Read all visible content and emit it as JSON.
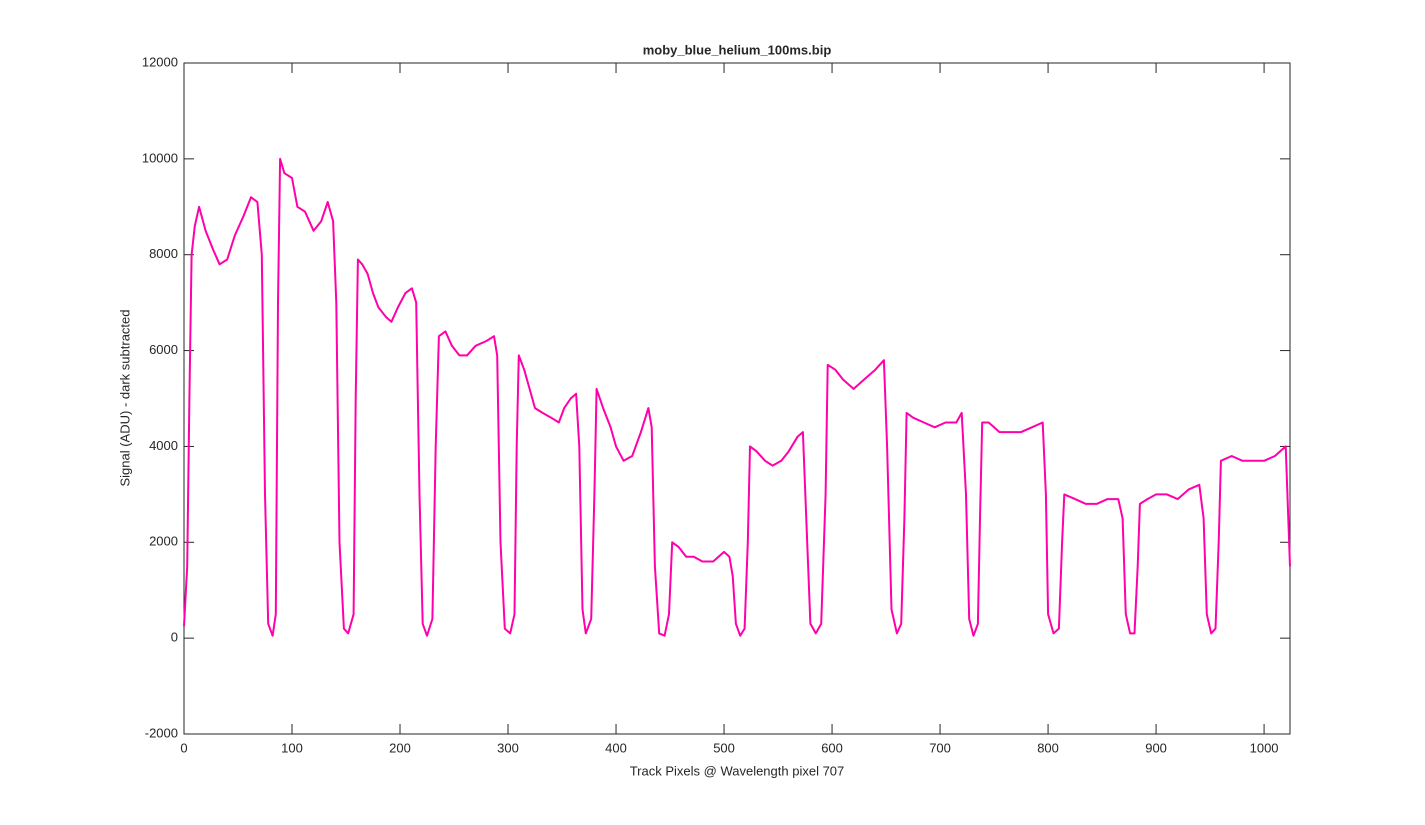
{
  "chart_data": {
    "type": "line",
    "title": "moby_blue_helium_100ms.bip",
    "x_label": "Track Pixels @ Wavelength pixel 707",
    "y_label": "Signal (ADU) - dark subtracted",
    "xlim": [
      0,
      1024
    ],
    "ylim": [
      -2000,
      12000
    ],
    "xticks": [
      0,
      100,
      200,
      300,
      400,
      500,
      600,
      700,
      800,
      900,
      1000
    ],
    "yticks": [
      -2000,
      0,
      2000,
      4000,
      6000,
      8000,
      10000,
      12000
    ],
    "grid": false,
    "x": [
      0,
      3,
      5,
      7,
      10,
      14,
      20,
      27,
      33,
      40,
      47,
      55,
      62,
      68,
      72,
      75,
      78,
      82,
      85,
      87,
      89,
      93,
      100,
      105,
      112,
      120,
      127,
      133,
      138,
      141,
      144,
      148,
      152,
      157,
      159,
      161,
      165,
      170,
      175,
      180,
      187,
      192,
      198,
      205,
      211,
      215,
      218,
      221,
      225,
      230,
      233,
      236,
      242,
      248,
      255,
      262,
      270,
      280,
      287,
      290,
      293,
      297,
      302,
      306,
      308,
      310,
      315,
      320,
      325,
      332,
      340,
      347,
      352,
      358,
      363,
      366,
      369,
      372,
      377,
      380,
      382,
      388,
      395,
      400,
      407,
      415,
      423,
      430,
      433,
      436,
      440,
      445,
      449,
      452,
      458,
      465,
      472,
      480,
      490,
      500,
      505,
      508,
      511,
      515,
      519,
      522,
      524,
      530,
      538,
      545,
      553,
      560,
      568,
      573,
      577,
      580,
      585,
      590,
      594,
      596,
      603,
      610,
      620,
      630,
      640,
      648,
      651,
      655,
      660,
      664,
      667,
      669,
      675,
      685,
      695,
      705,
      715,
      720,
      724,
      727,
      731,
      735,
      737,
      739,
      745,
      755,
      765,
      775,
      785,
      795,
      798,
      800,
      805,
      810,
      813,
      815,
      825,
      835,
      845,
      855,
      865,
      869,
      872,
      876,
      880,
      883,
      885,
      892,
      900,
      910,
      920,
      930,
      940,
      944,
      947,
      951,
      955,
      958,
      960,
      970,
      980,
      990,
      1000,
      1010,
      1020,
      1024
    ],
    "series": [
      {
        "color": "#ff00aa",
        "values": [
          250,
          1500,
          5000,
          8000,
          8600,
          9000,
          8500,
          8100,
          7800,
          7900,
          8400,
          8800,
          9200,
          9100,
          8000,
          3000,
          300,
          50,
          500,
          7000,
          10000,
          9700,
          9600,
          9000,
          8900,
          8500,
          8700,
          9100,
          8700,
          7000,
          2000,
          200,
          100,
          500,
          5000,
          7900,
          7800,
          7600,
          7200,
          6900,
          6700,
          6600,
          6900,
          7200,
          7300,
          7000,
          3000,
          300,
          50,
          400,
          4000,
          6300,
          6400,
          6100,
          5900,
          5900,
          6100,
          6200,
          6300,
          5900,
          2000,
          200,
          100,
          500,
          4000,
          5900,
          5600,
          5200,
          4800,
          4700,
          4600,
          4500,
          4800,
          5000,
          5100,
          4000,
          600,
          100,
          400,
          3000,
          5200,
          4800,
          4400,
          4000,
          3700,
          3800,
          4300,
          4800,
          4400,
          1500,
          100,
          50,
          500,
          2000,
          1900,
          1700,
          1700,
          1600,
          1600,
          1800,
          1700,
          1300,
          300,
          50,
          200,
          2000,
          4000,
          3900,
          3700,
          3600,
          3700,
          3900,
          4200,
          4300,
          2000,
          300,
          100,
          300,
          3000,
          5700,
          5600,
          5400,
          5200,
          5400,
          5600,
          5800,
          4000,
          600,
          100,
          300,
          2500,
          4700,
          4600,
          4500,
          4400,
          4500,
          4500,
          4700,
          3000,
          400,
          50,
          300,
          2500,
          4500,
          4500,
          4300,
          4300,
          4300,
          4400,
          4500,
          3000,
          500,
          100,
          200,
          2000,
          3000,
          2900,
          2800,
          2800,
          2900,
          2900,
          2500,
          500,
          100,
          100,
          1500,
          2800,
          2900,
          3000,
          3000,
          2900,
          3100,
          3200,
          2500,
          500,
          100,
          200,
          2000,
          3700,
          3800,
          3700,
          3700,
          3700,
          3800,
          4000,
          1500
        ]
      }
    ]
  }
}
